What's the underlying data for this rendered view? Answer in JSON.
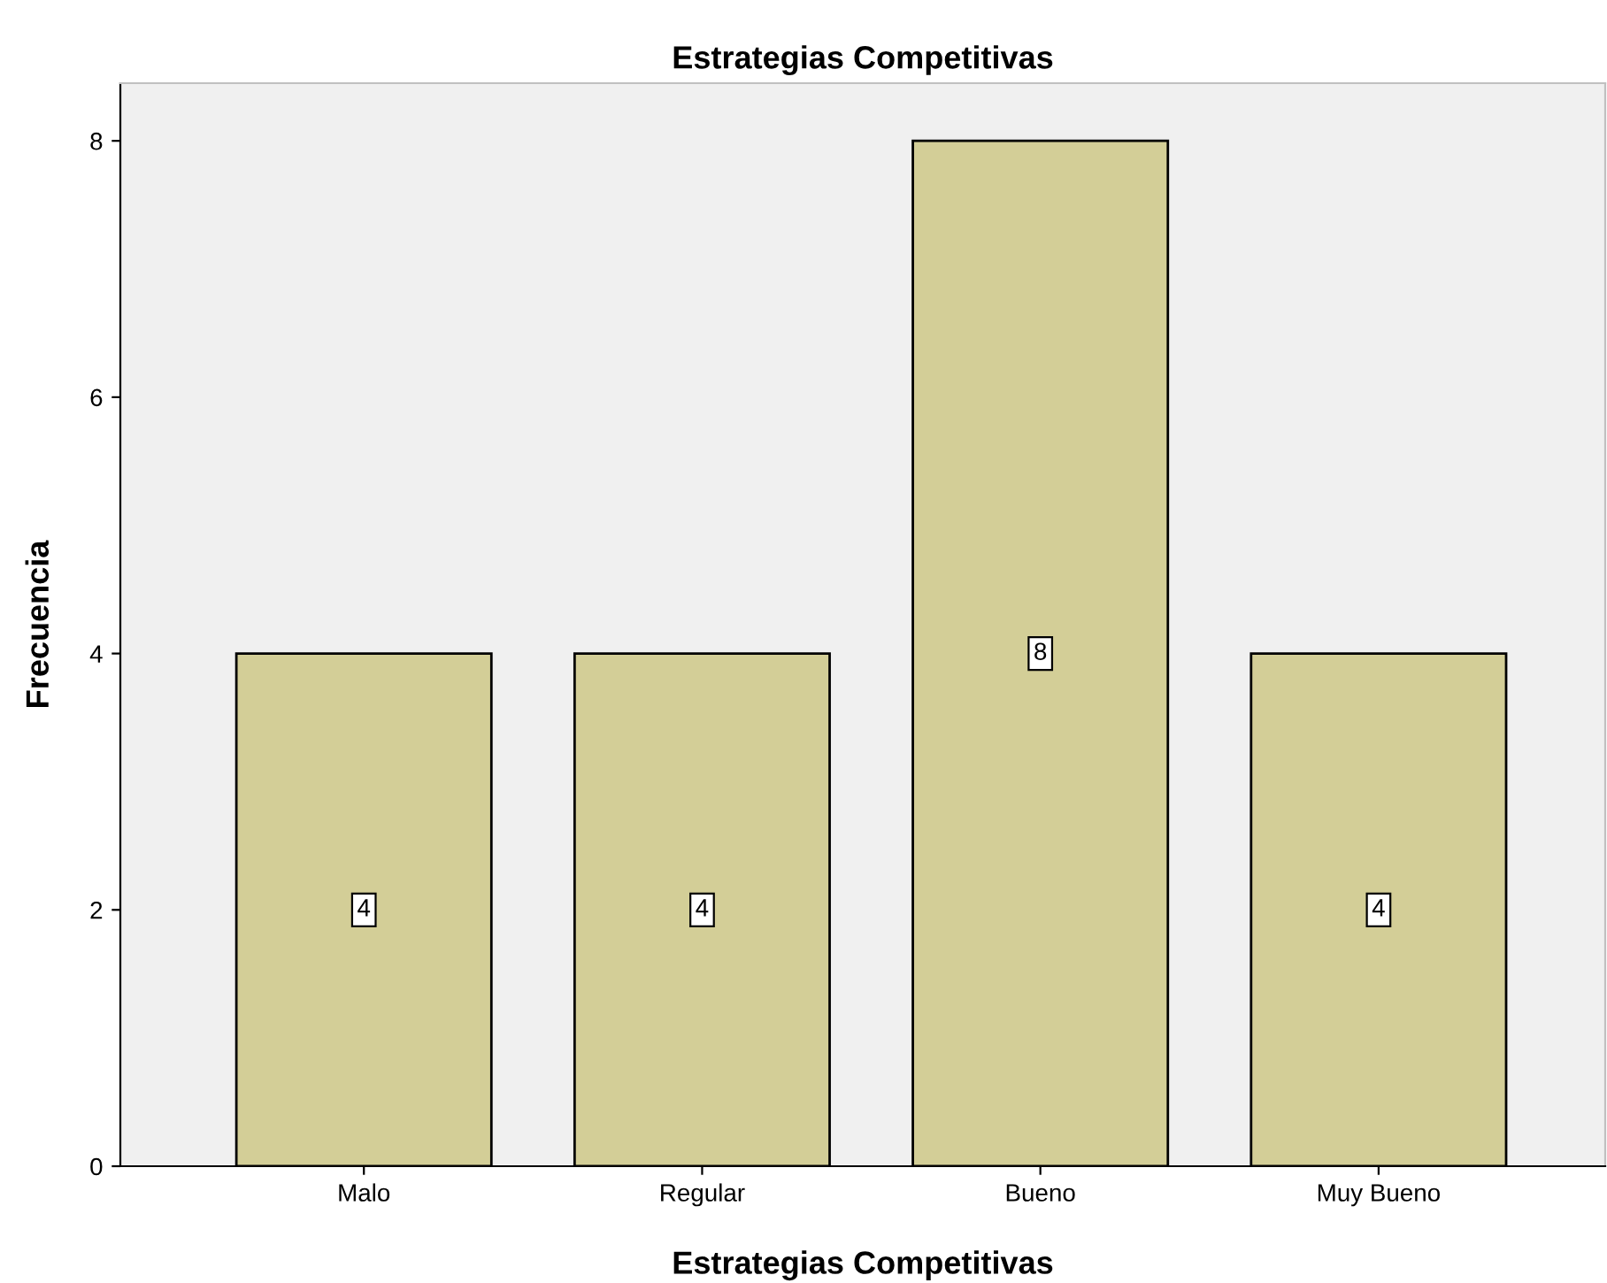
{
  "chart_data": {
    "type": "bar",
    "title": "Estrategias Competitivas",
    "xlabel": "Estrategias Competitivas",
    "ylabel": "Frecuencia",
    "categories": [
      "Malo",
      "Regular",
      "Bueno",
      "Muy Bueno"
    ],
    "values": [
      4,
      4,
      8,
      4
    ],
    "color": "#d3ce97",
    "ylim": [
      0,
      8.45
    ],
    "yticks": [
      0,
      2,
      4,
      6,
      8
    ],
    "grid": false,
    "data_labels": true
  }
}
